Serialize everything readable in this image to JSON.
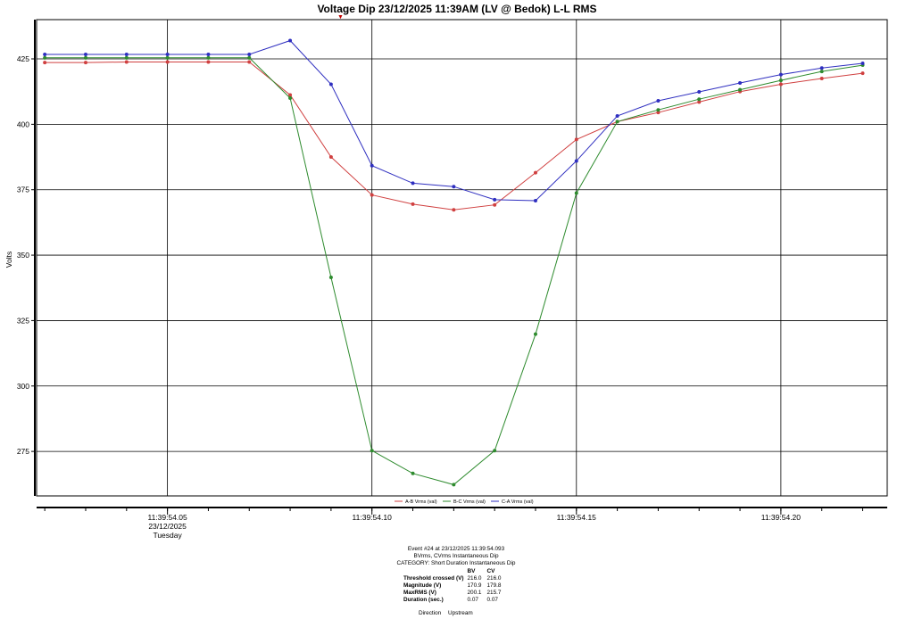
{
  "chart_data": {
    "type": "line",
    "title": "Voltage Dip 23/12/2025 11:39AM (LV @ Bedok) L-L RMS",
    "ylabel": "Volts",
    "ylim": [
      258,
      440
    ],
    "yticks": [
      275,
      300,
      325,
      350,
      375,
      400,
      425
    ],
    "xlim": [
      0.018,
      0.226
    ],
    "xticks": [
      {
        "x": 0.05,
        "label": "11:39:54.05",
        "sub": [
          "23/12/2025",
          "Tuesday"
        ]
      },
      {
        "x": 0.1,
        "label": "11:39:54.10",
        "sub": []
      },
      {
        "x": 0.15,
        "label": "11:39:54.15",
        "sub": []
      },
      {
        "x": 0.2,
        "label": "11:39:54.20",
        "sub": []
      }
    ],
    "grid": true,
    "legend_position": "bottom-center",
    "x": [
      0.02,
      0.03,
      0.04,
      0.05,
      0.06,
      0.07,
      0.08,
      0.09,
      0.1,
      0.11,
      0.12,
      0.13,
      0.14,
      0.15,
      0.16,
      0.17,
      0.18,
      0.19,
      0.2,
      0.21,
      0.22
    ],
    "series": [
      {
        "name": "A-B Vrms (val)",
        "color": "#d04040",
        "values": [
          423.6,
          423.6,
          423.8,
          423.8,
          423.8,
          423.8,
          411.2,
          387.5,
          373.0,
          369.5,
          367.3,
          369.2,
          381.5,
          394.2,
          401.0,
          404.5,
          408.5,
          412.5,
          415.3,
          417.5,
          419.5
        ]
      },
      {
        "name": "B-C Vrms (val)",
        "color": "#2e8b2e",
        "values": [
          425.4,
          425.4,
          425.4,
          425.4,
          425.4,
          425.4,
          410.0,
          341.5,
          275.3,
          266.6,
          262.3,
          275.3,
          319.8,
          373.7,
          401.0,
          405.5,
          409.6,
          413.2,
          416.8,
          420.2,
          422.6
        ]
      },
      {
        "name": "C-A Vrms (val)",
        "color": "#2f2fc0",
        "values": [
          426.7,
          426.7,
          426.7,
          426.7,
          426.7,
          426.7,
          432.0,
          415.3,
          384.2,
          377.5,
          376.2,
          371.2,
          370.8,
          386.0,
          403.2,
          409.0,
          412.4,
          415.8,
          419.0,
          421.5,
          423.3
        ]
      }
    ]
  },
  "trigger_marker": "▼",
  "event": {
    "line1": "Event #24 at 23/12/2025 11:39:54.093",
    "line2": "BVrms, CVrms Instantaneous Dip",
    "line3": "CATEGORY: Short Duration Instantaneous Dip",
    "columns": [
      "BV",
      "CV"
    ],
    "rows": [
      {
        "label": "Threshold crossed (V)",
        "bv": "216.0",
        "cv": "216.0"
      },
      {
        "label": "Magnitude (V)",
        "bv": "170.9",
        "cv": "179.8"
      },
      {
        "label": "MaxRMS (V)",
        "bv": "200.1",
        "cv": "215.7"
      },
      {
        "label": "Duration (sec.)",
        "bv": "0.07",
        "cv": "0.07"
      }
    ],
    "direction_label": "Direction",
    "direction_value": "Upstream"
  }
}
